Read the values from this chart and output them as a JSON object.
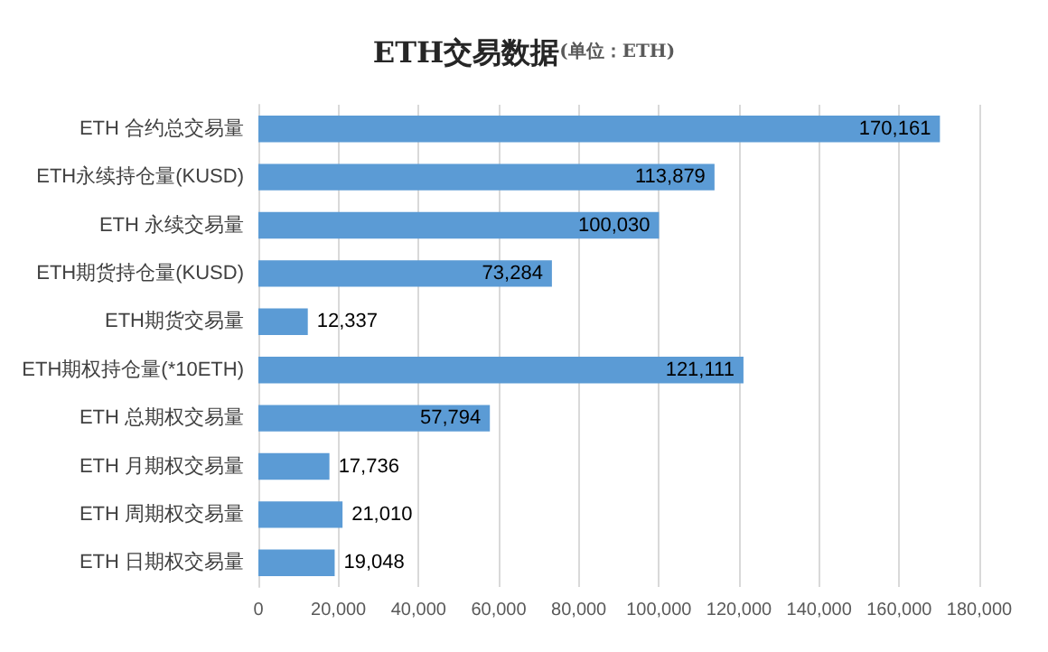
{
  "chart_data": {
    "type": "bar",
    "orientation": "horizontal",
    "title": "ETH交易数据",
    "subtitle": "(单位：ETH)",
    "categories": [
      "ETH 合约总交易量",
      "ETH永续持仓量(KUSD)",
      "ETH 永续交易量",
      "ETH期货持仓量(KUSD)",
      "ETH期货交易量",
      "ETH期权持仓量(*10ETH)",
      "ETH 总期权交易量",
      "ETH 月期权交易量",
      "ETH 周期权交易量",
      "ETH 日期权交易量"
    ],
    "values": [
      170161,
      113879,
      100030,
      73284,
      12337,
      121111,
      57794,
      17736,
      21010,
      19048
    ],
    "value_labels": [
      "170,161",
      "113,879",
      "100,030",
      "73,284",
      "12,337",
      "121,111",
      "57,794",
      "17,736",
      "21,010",
      "19,048"
    ],
    "color": "#5b9bd5",
    "grid": "x",
    "xlim": [
      0,
      180000
    ],
    "xticks": [
      0,
      {
        "value": 20000,
        "label": "20,000"
      },
      {
        "value": 40000,
        "label": "40,000"
      },
      {
        "value": 60000,
        "label": "60,000"
      },
      {
        "value": 80000,
        "label": "80,000"
      },
      {
        "value": 100000,
        "label": "100,000"
      },
      {
        "value": 120000,
        "label": "120,000"
      },
      {
        "value": 140000,
        "label": "140,000"
      },
      {
        "value": 160000,
        "label": "160,000"
      },
      {
        "value": 180000,
        "label": "180,000"
      }
    ]
  }
}
